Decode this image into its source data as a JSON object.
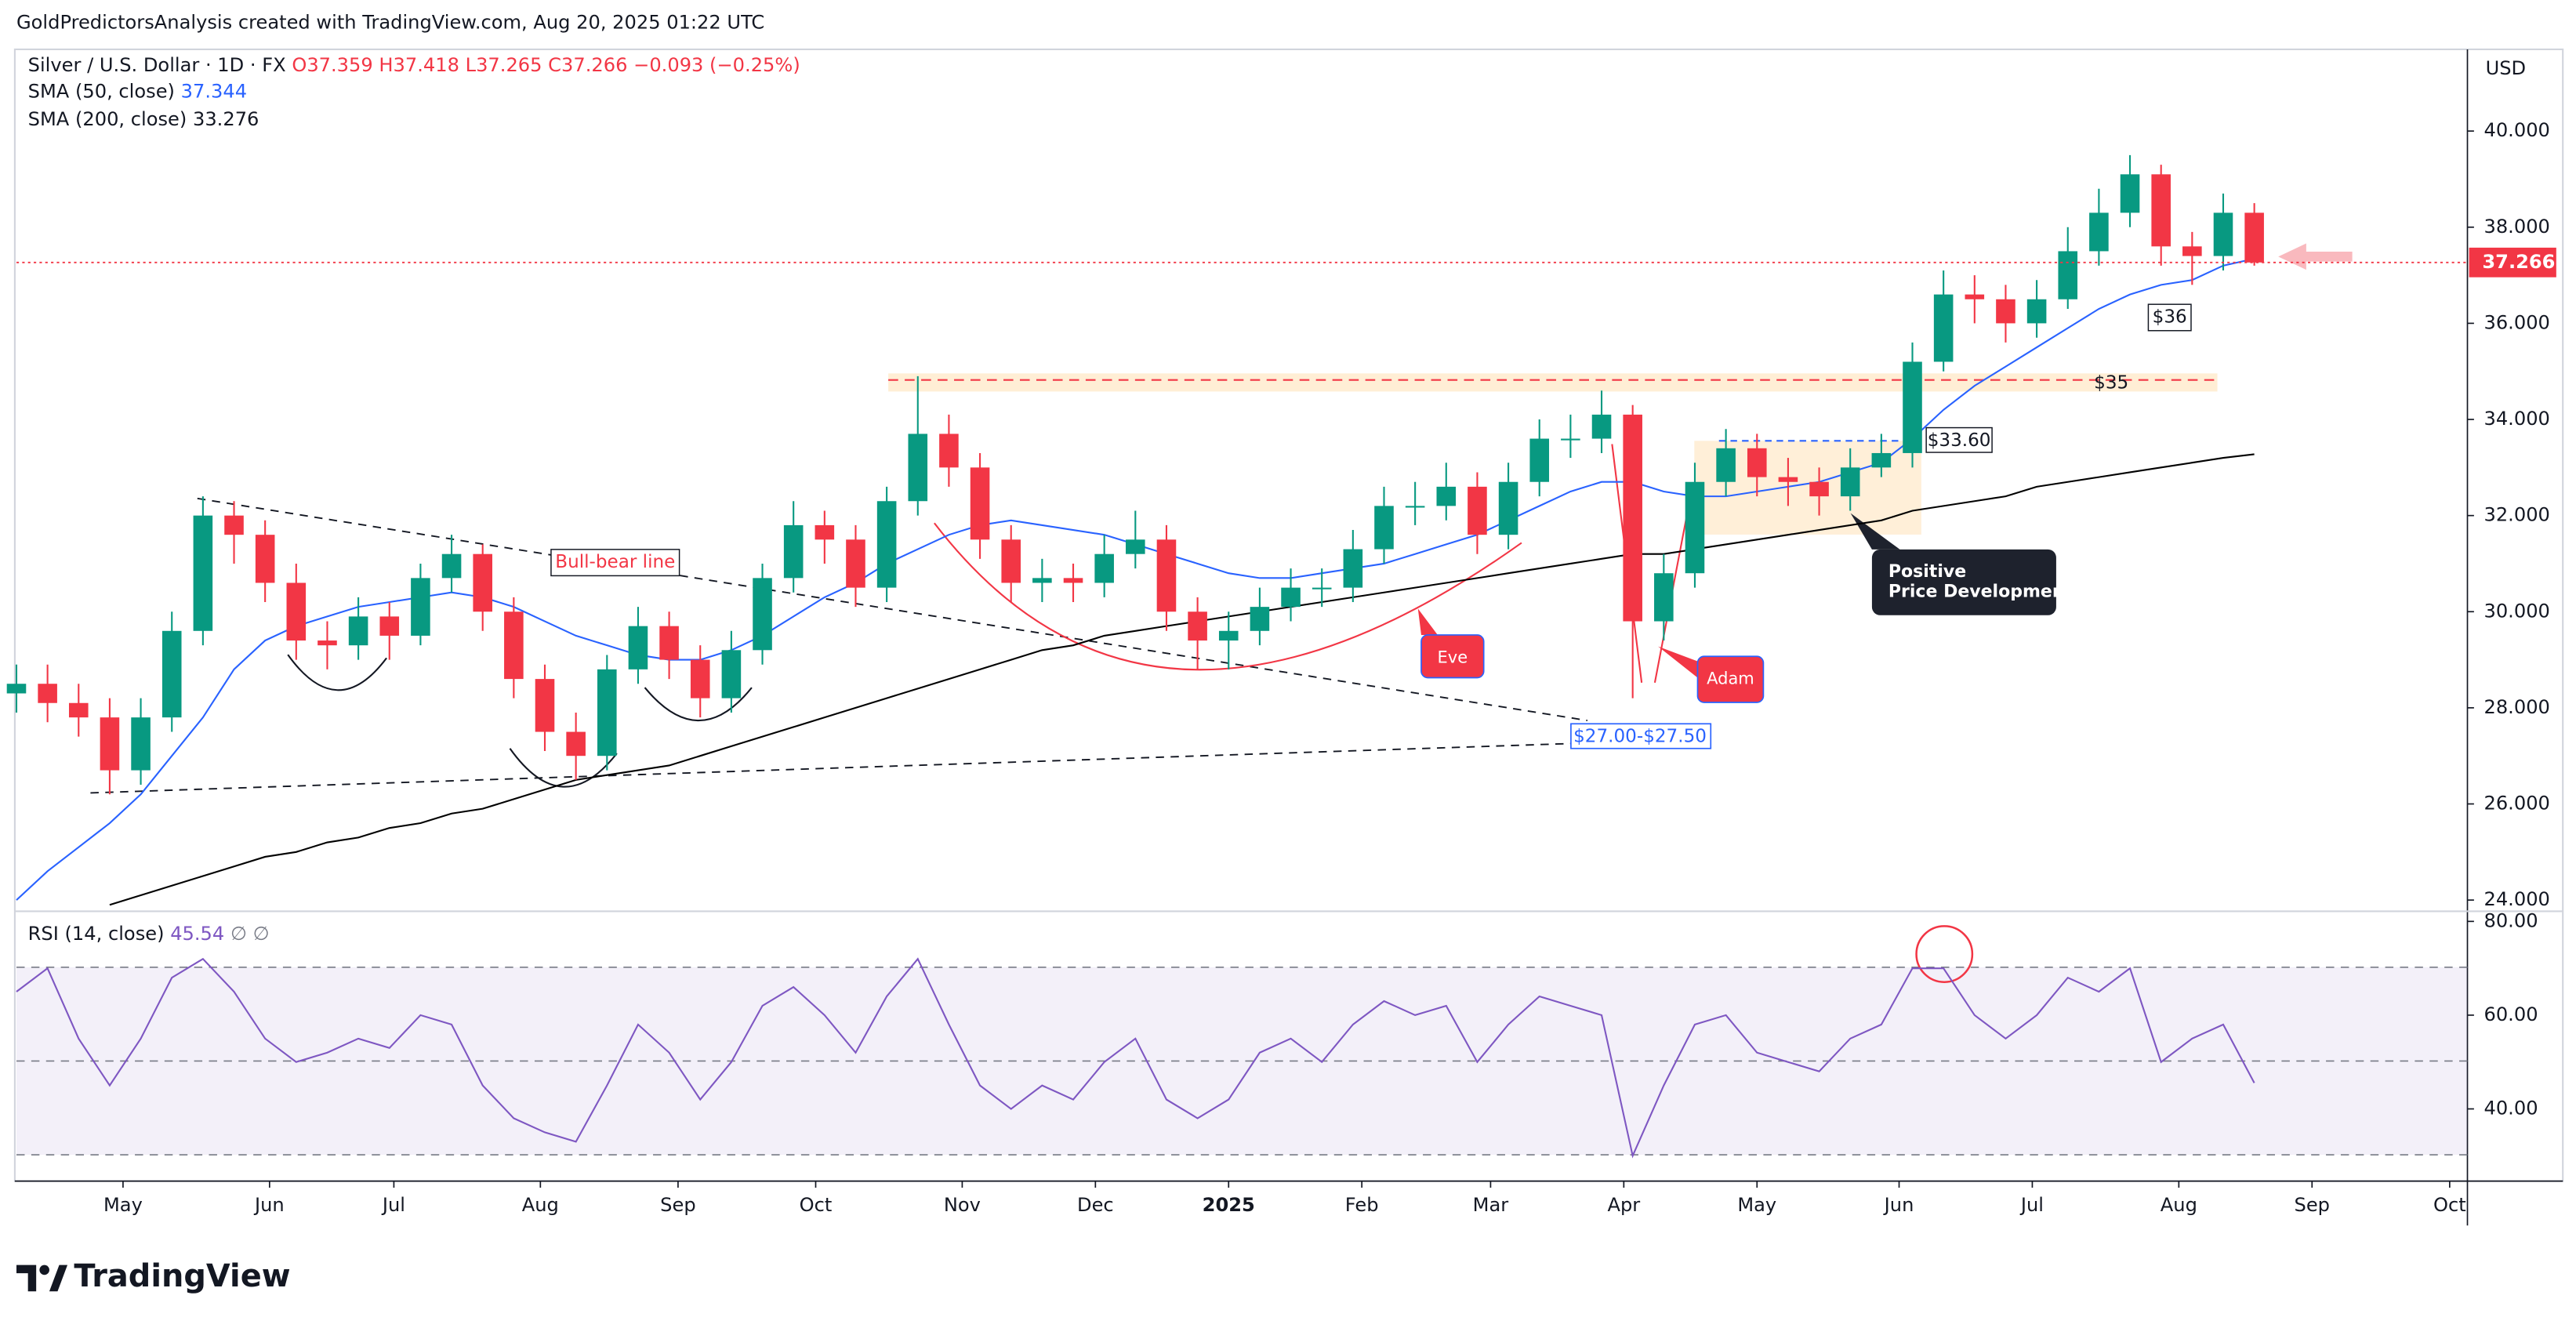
{
  "header": "GoldPredictorsAnalysis created with TradingView.com, Aug 20, 2025 01:22 UTC",
  "chart_data": {
    "type": "candlestick",
    "symbol": "Silver / U.S. Dollar · 1D · FX",
    "ohlc_labels": [
      "O37.359",
      "H37.418",
      "L37.265",
      "C37.266",
      "−0.093 (−0.25%)"
    ],
    "currency": "USD",
    "up_color": "#089981",
    "down_color": "#f23645",
    "x": [
      0,
      7,
      14,
      21,
      28,
      35,
      42,
      49,
      56,
      63,
      70,
      77,
      84,
      91,
      98,
      105,
      112,
      119,
      126,
      133,
      140,
      147,
      154,
      161,
      168,
      175,
      182,
      189,
      196,
      203,
      210,
      217,
      224,
      231,
      238,
      245,
      252,
      259,
      266,
      273,
      280,
      287,
      294,
      301,
      308,
      315,
      322,
      329,
      336,
      343,
      350,
      357,
      364,
      371,
      378,
      385,
      392,
      399,
      406,
      413,
      420,
      427,
      434,
      441,
      448,
      455,
      462,
      469,
      476,
      483,
      490,
      497,
      504
    ],
    "open": [
      28.3,
      28.5,
      28.1,
      27.8,
      26.7,
      27.8,
      29.6,
      32.0,
      31.6,
      30.6,
      29.4,
      29.3,
      29.9,
      29.5,
      30.7,
      31.2,
      30.0,
      28.6,
      27.5,
      27.0,
      28.8,
      29.7,
      29.0,
      28.2,
      29.2,
      30.7,
      31.8,
      31.5,
      30.5,
      32.3,
      33.7,
      33.0,
      31.5,
      30.6,
      30.7,
      30.6,
      31.2,
      31.5,
      30.0,
      29.4,
      29.6,
      30.1,
      30.5,
      30.5,
      31.3,
      32.2,
      32.2,
      32.6,
      31.6,
      32.7,
      33.6,
      33.6,
      34.1,
      29.8,
      30.8,
      32.7,
      33.4,
      32.8,
      32.7,
      32.4,
      33.0,
      33.3,
      35.2,
      36.6,
      36.5,
      36.0,
      36.5,
      37.5,
      38.3,
      39.1,
      37.6,
      37.4,
      38.3
    ],
    "high": [
      28.9,
      28.9,
      28.5,
      28.2,
      28.2,
      30.0,
      32.4,
      32.3,
      31.9,
      31.0,
      29.8,
      30.3,
      30.2,
      31.0,
      31.6,
      31.4,
      30.3,
      28.9,
      27.9,
      29.1,
      30.1,
      30.0,
      29.3,
      29.6,
      31.0,
      32.3,
      32.1,
      31.8,
      32.6,
      34.9,
      34.1,
      33.3,
      31.8,
      31.1,
      31.0,
      31.6,
      32.1,
      31.8,
      30.3,
      30.0,
      30.5,
      30.9,
      30.9,
      31.7,
      32.6,
      32.7,
      33.1,
      32.9,
      33.1,
      34.0,
      34.1,
      34.6,
      34.3,
      31.2,
      33.1,
      33.8,
      33.7,
      33.2,
      33.0,
      33.4,
      33.7,
      35.6,
      37.1,
      37.0,
      36.8,
      36.9,
      38.0,
      38.8,
      39.5,
      39.3,
      37.9,
      38.7,
      38.5
    ],
    "low": [
      27.9,
      27.7,
      27.4,
      26.2,
      26.4,
      27.5,
      29.3,
      31.0,
      30.2,
      29.0,
      28.8,
      29.0,
      29.0,
      29.3,
      30.4,
      29.6,
      28.2,
      27.1,
      26.5,
      26.7,
      28.5,
      28.6,
      27.8,
      27.9,
      28.9,
      30.4,
      31.0,
      30.1,
      30.2,
      32.0,
      32.6,
      31.1,
      30.2,
      30.2,
      30.2,
      30.3,
      30.9,
      29.6,
      28.8,
      28.8,
      29.3,
      29.8,
      30.1,
      30.2,
      31.0,
      31.8,
      31.9,
      31.2,
      31.3,
      32.4,
      33.2,
      33.3,
      28.2,
      29.4,
      30.5,
      32.4,
      32.4,
      32.2,
      32.0,
      32.1,
      32.8,
      33.0,
      35.0,
      36.0,
      35.6,
      35.7,
      36.3,
      37.2,
      38.0,
      37.2,
      36.8,
      37.1,
      37.2
    ],
    "close": [
      28.5,
      28.1,
      27.8,
      26.7,
      27.8,
      29.6,
      32.0,
      31.6,
      30.6,
      29.4,
      29.3,
      29.9,
      29.5,
      30.7,
      31.2,
      30.0,
      28.6,
      27.5,
      27.0,
      28.8,
      29.7,
      29.0,
      28.2,
      29.2,
      30.7,
      31.8,
      31.5,
      30.5,
      32.3,
      33.7,
      33.0,
      31.5,
      30.6,
      30.7,
      30.6,
      31.2,
      31.5,
      30.0,
      29.4,
      29.6,
      30.1,
      30.5,
      30.5,
      31.3,
      32.2,
      32.2,
      32.6,
      31.6,
      32.7,
      33.6,
      33.6,
      34.1,
      29.8,
      30.8,
      32.7,
      33.4,
      32.8,
      32.7,
      32.4,
      33.0,
      33.3,
      35.2,
      36.6,
      36.5,
      36.0,
      36.5,
      37.5,
      38.3,
      39.1,
      37.6,
      37.4,
      38.3,
      37.266
    ],
    "series": [
      {
        "name": "SMA (50, close)",
        "color": "#2962ff",
        "values": [
          24.0,
          24.6,
          25.1,
          25.6,
          26.2,
          27.0,
          27.8,
          28.8,
          29.4,
          29.7,
          29.9,
          30.1,
          30.2,
          30.3,
          30.4,
          30.3,
          30.1,
          29.8,
          29.5,
          29.3,
          29.1,
          29.0,
          29.0,
          29.2,
          29.5,
          29.9,
          30.3,
          30.6,
          31.0,
          31.3,
          31.6,
          31.8,
          31.9,
          31.8,
          31.7,
          31.6,
          31.4,
          31.2,
          31.0,
          30.8,
          30.7,
          30.7,
          30.8,
          30.9,
          31.0,
          31.2,
          31.4,
          31.6,
          31.9,
          32.2,
          32.5,
          32.7,
          32.7,
          32.5,
          32.4,
          32.4,
          32.5,
          32.6,
          32.7,
          32.9,
          33.1,
          33.6,
          34.2,
          34.7,
          35.1,
          35.5,
          35.9,
          36.3,
          36.6,
          36.8,
          36.9,
          37.2,
          37.344
        ]
      },
      {
        "name": "SMA (200, close)",
        "color": "#000000",
        "values": [
          null,
          null,
          null,
          23.9,
          24.1,
          24.3,
          24.5,
          24.7,
          24.9,
          25.0,
          25.2,
          25.3,
          25.5,
          25.6,
          25.8,
          25.9,
          26.1,
          26.3,
          26.5,
          26.6,
          26.7,
          26.8,
          27.0,
          27.2,
          27.4,
          27.6,
          27.8,
          28.0,
          28.2,
          28.4,
          28.6,
          28.8,
          29.0,
          29.2,
          29.3,
          29.5,
          29.6,
          29.7,
          29.8,
          29.9,
          30.0,
          30.1,
          30.2,
          30.3,
          30.4,
          30.5,
          30.6,
          30.7,
          30.8,
          30.9,
          31.0,
          31.1,
          31.2,
          31.2,
          31.3,
          31.4,
          31.5,
          31.6,
          31.7,
          31.8,
          31.9,
          32.1,
          32.2,
          32.3,
          32.4,
          32.6,
          32.7,
          32.8,
          32.9,
          33.0,
          33.1,
          33.2,
          33.276
        ]
      }
    ],
    "xlim": [
      0,
      552
    ],
    "xticks": [
      {
        "value": 24,
        "label": "May"
      },
      {
        "value": 57,
        "label": "Jun"
      },
      {
        "value": 85,
        "label": "Jul"
      },
      {
        "value": 118,
        "label": "Aug"
      },
      {
        "value": 149,
        "label": "Sep"
      },
      {
        "value": 180,
        "label": "Oct"
      },
      {
        "value": 213,
        "label": "Nov"
      },
      {
        "value": 243,
        "label": "Dec"
      },
      {
        "value": 273,
        "label": "2025"
      },
      {
        "value": 303,
        "label": "Feb"
      },
      {
        "value": 332,
        "label": "Mar"
      },
      {
        "value": 362,
        "label": "Apr"
      },
      {
        "value": 392,
        "label": "May"
      },
      {
        "value": 424,
        "label": "Jun"
      },
      {
        "value": 454,
        "label": "Jul"
      },
      {
        "value": 487,
        "label": "Aug"
      },
      {
        "value": 517,
        "label": "Sep"
      },
      {
        "value": 548,
        "label": "Oct"
      }
    ],
    "ylim": [
      23.8,
      41.7
    ],
    "yticks": [
      {
        "value": 24,
        "label": "24.000"
      },
      {
        "value": 26,
        "label": "26.000"
      },
      {
        "value": 28,
        "label": "28.000"
      },
      {
        "value": 30,
        "label": "30.000"
      },
      {
        "value": 32,
        "label": "32.000"
      },
      {
        "value": 34,
        "label": "34.000"
      },
      {
        "value": 36,
        "label": "36.000"
      },
      {
        "value": 38,
        "label": "38.000"
      },
      {
        "value": 40,
        "label": "40.000"
      }
    ],
    "rsi": {
      "name": "RSI (14, close)",
      "color": "#7e57c2",
      "extra": "∅ ∅",
      "values": [
        65,
        70,
        55,
        45,
        55,
        68,
        72,
        65,
        55,
        50,
        52,
        55,
        53,
        60,
        58,
        45,
        38,
        35,
        33,
        45,
        58,
        52,
        42,
        50,
        62,
        66,
        60,
        52,
        64,
        72,
        58,
        45,
        40,
        45,
        42,
        50,
        55,
        42,
        38,
        42,
        52,
        55,
        50,
        58,
        63,
        60,
        62,
        50,
        58,
        64,
        62,
        60,
        30,
        45,
        58,
        60,
        52,
        50,
        48,
        55,
        58,
        70,
        70,
        60,
        55,
        60,
        68,
        65,
        70,
        50,
        55,
        58,
        45.54
      ],
      "ylim": [
        24.6,
        81.8
      ],
      "yticks": [
        {
          "value": 40,
          "label": "40.00"
        },
        {
          "value": 60,
          "label": "60.00"
        },
        {
          "value": 80,
          "label": "80.00"
        }
      ]
    },
    "annotations": {
      "bull_bear": "Bull-bear line",
      "eve": "Eve",
      "adam": "Adam",
      "positive": [
        "Positive",
        "Price Development"
      ],
      "range": "$27.00-$27.50",
      "level_3360": "$33.60",
      "level_35": "$35",
      "level_36": "$36"
    }
  },
  "logo": "TradingView"
}
